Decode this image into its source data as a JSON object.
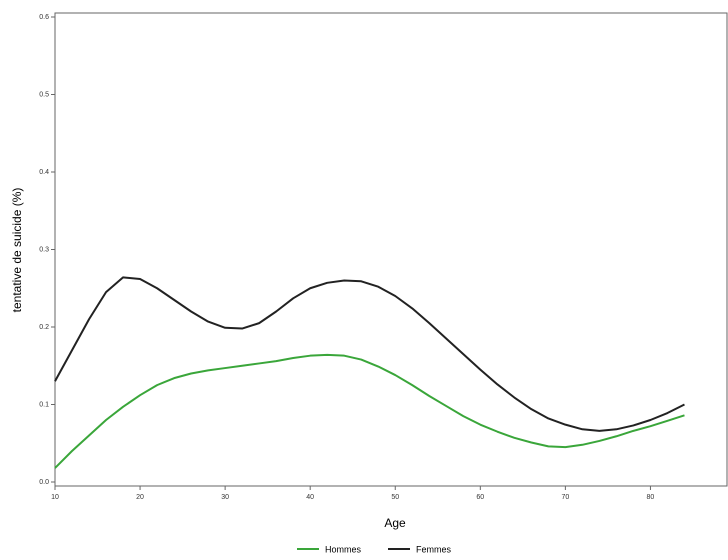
{
  "chart_data": {
    "type": "line",
    "x_label": "Age",
    "y_label": "tentative de suicide (%)",
    "x": [
      10,
      12,
      14,
      16,
      18,
      20,
      22,
      24,
      26,
      28,
      30,
      32,
      34,
      36,
      38,
      40,
      42,
      44,
      46,
      48,
      50,
      52,
      54,
      56,
      58,
      60,
      62,
      64,
      66,
      68,
      70,
      72,
      74,
      76,
      78,
      80,
      82,
      84
    ],
    "series": [
      {
        "name": "Hommes",
        "color": "#3aa63a",
        "values": [
          0.018,
          0.04,
          0.06,
          0.08,
          0.097,
          0.112,
          0.125,
          0.134,
          0.14,
          0.144,
          0.147,
          0.15,
          0.153,
          0.156,
          0.16,
          0.163,
          0.164,
          0.163,
          0.158,
          0.149,
          0.138,
          0.125,
          0.111,
          0.098,
          0.085,
          0.074,
          0.065,
          0.057,
          0.051,
          0.046,
          0.045,
          0.048,
          0.053,
          0.059,
          0.066,
          0.072,
          0.079,
          0.086
        ]
      },
      {
        "name": "Femmes",
        "color": "#222222",
        "values": [
          0.13,
          0.17,
          0.21,
          0.245,
          0.264,
          0.262,
          0.25,
          0.235,
          0.22,
          0.207,
          0.199,
          0.198,
          0.205,
          0.22,
          0.237,
          0.25,
          0.257,
          0.26,
          0.259,
          0.252,
          0.24,
          0.224,
          0.205,
          0.185,
          0.165,
          0.145,
          0.126,
          0.109,
          0.094,
          0.082,
          0.074,
          0.068,
          0.066,
          0.068,
          0.073,
          0.08,
          0.089,
          0.1
        ]
      }
    ],
    "xlim": [
      10,
      89
    ],
    "xticks": [
      10,
      20,
      30,
      40,
      50,
      60,
      70,
      80
    ],
    "ylim": [
      0,
      0.6
    ],
    "yticks": [
      {
        "value": 0,
        "label": "0.0"
      },
      0.1,
      0.2,
      0.3,
      0.4,
      0.5,
      0.6
    ]
  }
}
